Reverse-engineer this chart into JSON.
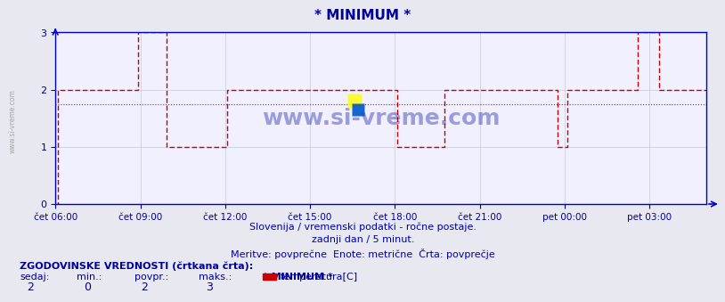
{
  "title": "* MINIMUM *",
  "title_color": "#000099",
  "bg_color": "#e8e8f0",
  "plot_bg_color": "#f0f0ff",
  "grid_color": "#c8c8d8",
  "line_color": "#cc0000",
  "avg_line_color": "#cc0000",
  "avg_value": 1.75,
  "ylim": [
    0,
    3
  ],
  "yticks": [
    0,
    1,
    2,
    3
  ],
  "xlabel_color": "#000099",
  "watermark": "www.si-vreme.com",
  "watermark_color": "#000099",
  "subtitle1": "Slovenija / vremenski podatki - ročne postaje.",
  "subtitle2": "zadnji dan / 5 minut.",
  "subtitle3": "Meritve: povprečne  Enote: metrične  Črta: povprečje",
  "subtitle_color": "#0000aa",
  "footer_title": "ZGODOVINSKE VREDNOSTI (črtkana črta):",
  "footer_labels": [
    "sedaj:",
    "min.:",
    "povpr.:",
    "maks.:"
  ],
  "footer_values": [
    "2",
    "0",
    "2",
    "3"
  ],
  "footer_series": "* MINIMUM *",
  "footer_legend": "temperatura[C]",
  "footer_color": "#000099",
  "tick_labels": [
    "čet 06:00",
    "čet 09:00",
    "čet 12:00",
    "čet 15:00",
    "čet 18:00",
    "čet 21:00",
    "pet 00:00",
    "pet 03:00"
  ],
  "tick_positions": [
    0,
    180,
    360,
    540,
    720,
    900,
    1080,
    1260
  ],
  "total_minutes": 1380,
  "step_data": [
    [
      0,
      0
    ],
    [
      5,
      2
    ],
    [
      170,
      2
    ],
    [
      175,
      3
    ],
    [
      230,
      3
    ],
    [
      235,
      1
    ],
    [
      360,
      1
    ],
    [
      365,
      2
    ],
    [
      720,
      2
    ],
    [
      725,
      1
    ],
    [
      820,
      1
    ],
    [
      825,
      2
    ],
    [
      1060,
      2
    ],
    [
      1065,
      1
    ],
    [
      1080,
      1
    ],
    [
      1085,
      2
    ],
    [
      1230,
      2
    ],
    [
      1235,
      3
    ],
    [
      1275,
      3
    ],
    [
      1280,
      2
    ],
    [
      1380,
      2
    ]
  ]
}
